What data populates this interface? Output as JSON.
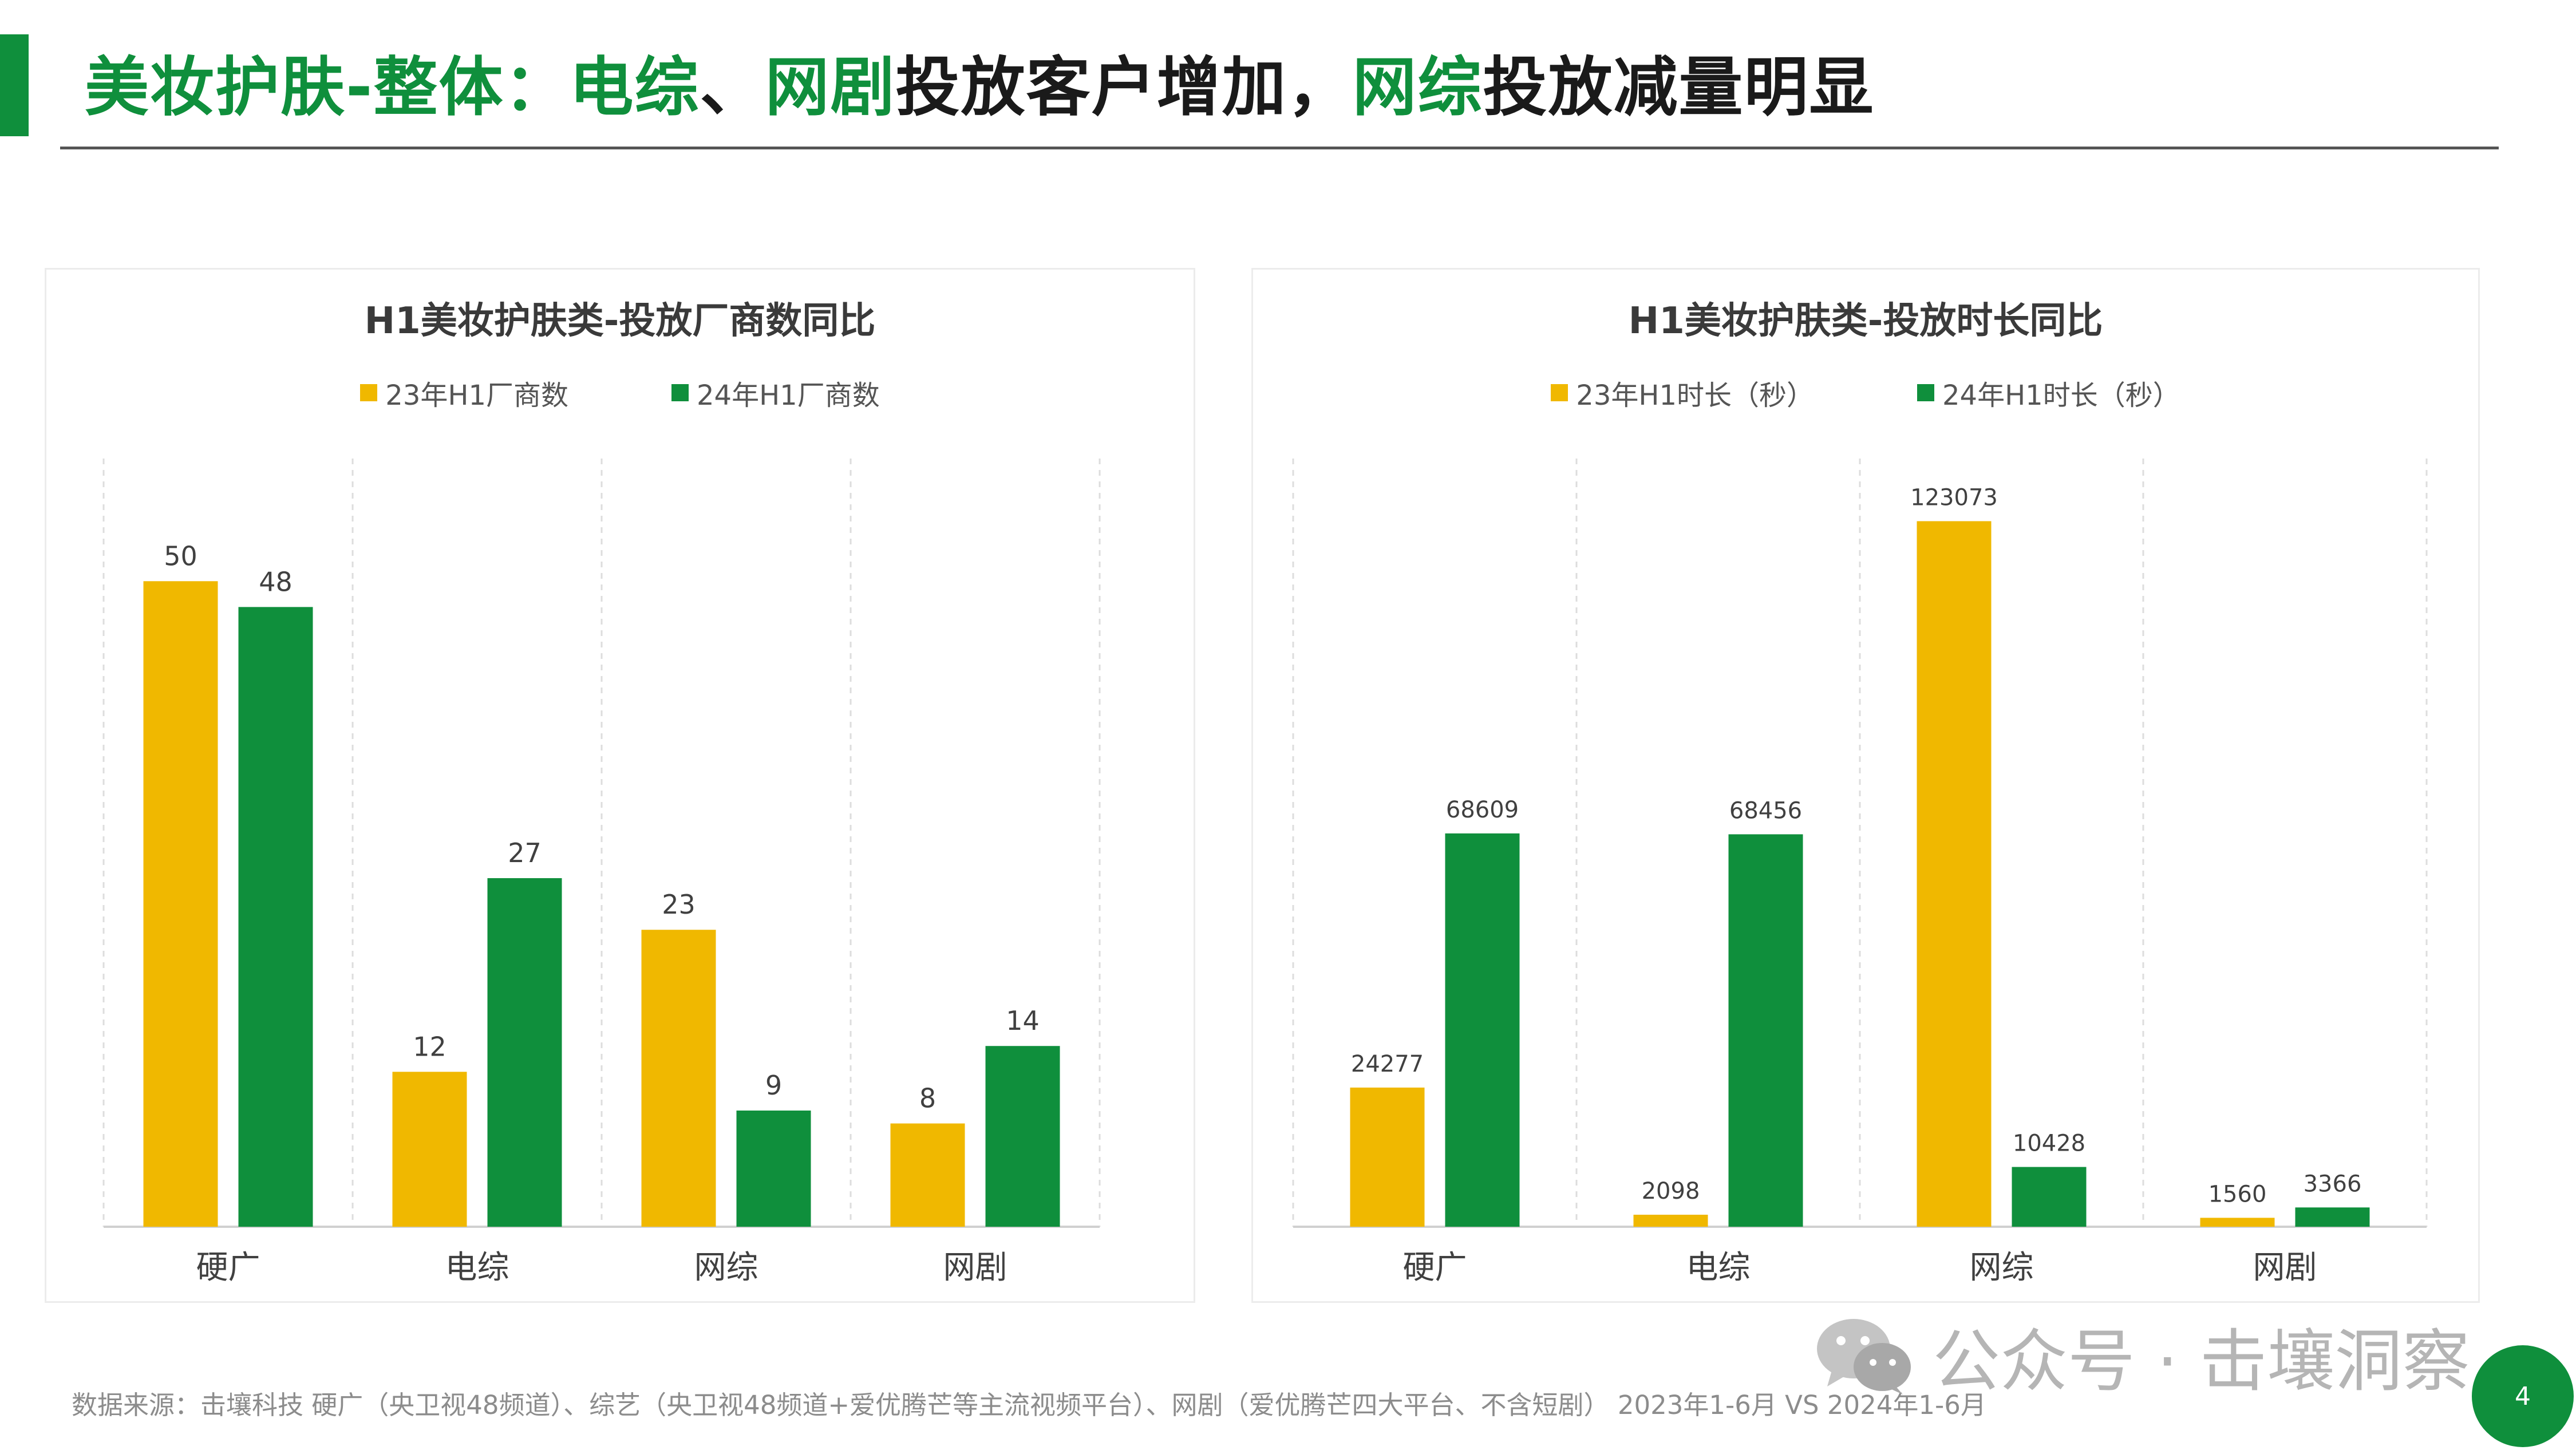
{
  "header": {
    "title_parts": [
      {
        "text": "美妆护肤-整体：",
        "accent": true
      },
      {
        "text": "电综",
        "accent": true
      },
      {
        "text": "、",
        "accent": false
      },
      {
        "text": "网剧",
        "accent": true
      },
      {
        "text": "投放客户增加，",
        "accent": false
      },
      {
        "text": "网综",
        "accent": true
      },
      {
        "text": "投放减量明显",
        "accent": false
      }
    ]
  },
  "colors": {
    "series_2023": "#f0b800",
    "series_2024": "#0f8f3c",
    "accent": "#0f8f3c"
  },
  "chart_data": [
    {
      "type": "bar",
      "title": "H1美妆护肤类-投放厂商数同比",
      "categories": [
        "硬广",
        "电综",
        "网综",
        "网剧"
      ],
      "series": [
        {
          "name": "23年H1厂商数",
          "values": [
            50,
            12,
            23,
            8
          ]
        },
        {
          "name": "24年H1厂商数",
          "values": [
            48,
            27,
            9,
            14
          ]
        }
      ],
      "ylim": [
        0,
        59.5
      ],
      "legend": "top",
      "grid": "vertical dashed separators"
    },
    {
      "type": "bar",
      "title": "H1美妆护肤类-投放时长同比",
      "categories": [
        "硬广",
        "电综",
        "网综",
        "网剧"
      ],
      "series": [
        {
          "name": "23年H1时长（秒）",
          "values": [
            24277,
            2098,
            123073,
            1560
          ]
        },
        {
          "name": "24年H1时长（秒）",
          "values": [
            68609,
            68456,
            10428,
            3366
          ]
        }
      ],
      "ylim": [
        0,
        134000
      ],
      "legend": "top",
      "grid": "vertical dashed separators"
    }
  ],
  "footer": {
    "source": "数据来源：击壤科技 硬广（央卫视48频道）、综艺（央卫视48频道+爱优腾芒等主流视频平台）、网剧（爱优腾芒四大平台、不含短剧） 2023年1-6月 VS 2024年1-6月",
    "watermark": "公众号 · 击壤洞察",
    "page_number": "4"
  }
}
